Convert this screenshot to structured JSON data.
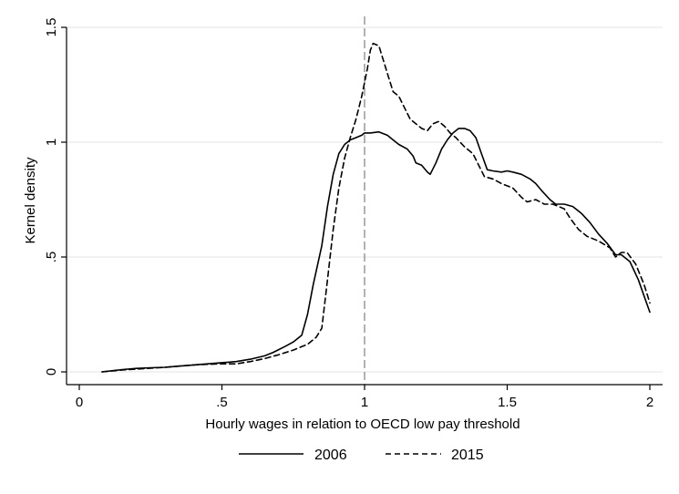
{
  "chart_data": {
    "type": "line",
    "title": "",
    "xlabel": "Hourly wages in relation to OECD low pay threshold",
    "ylabel": "Kernel density",
    "xlim": [
      0,
      2
    ],
    "ylim": [
      0,
      1.5
    ],
    "x_ticks": [
      0,
      0.5,
      1,
      1.5,
      2
    ],
    "x_tick_labels": [
      "0",
      ".5",
      "1",
      "1.5",
      "2"
    ],
    "y_ticks": [
      0,
      0.5,
      1,
      1.5
    ],
    "y_tick_labels": [
      "0",
      ".5",
      "1",
      "1.5"
    ],
    "grid": "horizontal",
    "reference_line": {
      "x": 1,
      "style": "dashed"
    },
    "legend": {
      "position": "bottom",
      "entries": [
        "2006",
        "2015"
      ]
    },
    "series": [
      {
        "name": "2006",
        "style": "solid",
        "color": "#000000",
        "points": [
          [
            0.08,
            0.0
          ],
          [
            0.15,
            0.01
          ],
          [
            0.2,
            0.015
          ],
          [
            0.25,
            0.018
          ],
          [
            0.3,
            0.02
          ],
          [
            0.35,
            0.025
          ],
          [
            0.4,
            0.03
          ],
          [
            0.45,
            0.035
          ],
          [
            0.5,
            0.04
          ],
          [
            0.55,
            0.045
          ],
          [
            0.6,
            0.055
          ],
          [
            0.65,
            0.07
          ],
          [
            0.68,
            0.085
          ],
          [
            0.72,
            0.11
          ],
          [
            0.75,
            0.13
          ],
          [
            0.77,
            0.15
          ],
          [
            0.78,
            0.16
          ],
          [
            0.8,
            0.25
          ],
          [
            0.82,
            0.38
          ],
          [
            0.85,
            0.55
          ],
          [
            0.87,
            0.72
          ],
          [
            0.89,
            0.86
          ],
          [
            0.91,
            0.95
          ],
          [
            0.93,
            0.99
          ],
          [
            0.95,
            1.01
          ],
          [
            0.97,
            1.02
          ],
          [
            0.99,
            1.03
          ],
          [
            1.0,
            1.04
          ],
          [
            1.02,
            1.04
          ],
          [
            1.05,
            1.045
          ],
          [
            1.08,
            1.03
          ],
          [
            1.1,
            1.01
          ],
          [
            1.12,
            0.99
          ],
          [
            1.15,
            0.97
          ],
          [
            1.17,
            0.94
          ],
          [
            1.18,
            0.91
          ],
          [
            1.2,
            0.9
          ],
          [
            1.22,
            0.87
          ],
          [
            1.23,
            0.86
          ],
          [
            1.25,
            0.91
          ],
          [
            1.27,
            0.97
          ],
          [
            1.29,
            1.01
          ],
          [
            1.31,
            1.04
          ],
          [
            1.33,
            1.06
          ],
          [
            1.35,
            1.06
          ],
          [
            1.37,
            1.05
          ],
          [
            1.39,
            1.02
          ],
          [
            1.41,
            0.95
          ],
          [
            1.43,
            0.88
          ],
          [
            1.45,
            0.875
          ],
          [
            1.48,
            0.87
          ],
          [
            1.5,
            0.875
          ],
          [
            1.52,
            0.87
          ],
          [
            1.55,
            0.86
          ],
          [
            1.58,
            0.84
          ],
          [
            1.6,
            0.82
          ],
          [
            1.62,
            0.79
          ],
          [
            1.65,
            0.75
          ],
          [
            1.67,
            0.73
          ],
          [
            1.7,
            0.73
          ],
          [
            1.73,
            0.72
          ],
          [
            1.76,
            0.69
          ],
          [
            1.79,
            0.65
          ],
          [
            1.82,
            0.6
          ],
          [
            1.85,
            0.56
          ],
          [
            1.88,
            0.51
          ],
          [
            1.9,
            0.51
          ],
          [
            1.93,
            0.48
          ],
          [
            1.96,
            0.4
          ],
          [
            1.98,
            0.33
          ],
          [
            2.0,
            0.26
          ]
        ]
      },
      {
        "name": "2015",
        "style": "dashed",
        "color": "#000000",
        "points": [
          [
            0.08,
            0.0
          ],
          [
            0.15,
            0.008
          ],
          [
            0.2,
            0.012
          ],
          [
            0.25,
            0.016
          ],
          [
            0.3,
            0.02
          ],
          [
            0.35,
            0.025
          ],
          [
            0.4,
            0.03
          ],
          [
            0.45,
            0.033
          ],
          [
            0.5,
            0.035
          ],
          [
            0.55,
            0.035
          ],
          [
            0.6,
            0.045
          ],
          [
            0.65,
            0.058
          ],
          [
            0.7,
            0.075
          ],
          [
            0.75,
            0.095
          ],
          [
            0.78,
            0.11
          ],
          [
            0.8,
            0.12
          ],
          [
            0.83,
            0.15
          ],
          [
            0.85,
            0.19
          ],
          [
            0.87,
            0.4
          ],
          [
            0.89,
            0.62
          ],
          [
            0.91,
            0.8
          ],
          [
            0.93,
            0.93
          ],
          [
            0.95,
            1.02
          ],
          [
            0.97,
            1.1
          ],
          [
            0.99,
            1.2
          ],
          [
            1.01,
            1.32
          ],
          [
            1.02,
            1.4
          ],
          [
            1.03,
            1.43
          ],
          [
            1.05,
            1.42
          ],
          [
            1.06,
            1.38
          ],
          [
            1.08,
            1.3
          ],
          [
            1.1,
            1.22
          ],
          [
            1.12,
            1.2
          ],
          [
            1.14,
            1.15
          ],
          [
            1.16,
            1.1
          ],
          [
            1.18,
            1.08
          ],
          [
            1.2,
            1.06
          ],
          [
            1.22,
            1.05
          ],
          [
            1.24,
            1.08
          ],
          [
            1.26,
            1.09
          ],
          [
            1.28,
            1.07
          ],
          [
            1.3,
            1.04
          ],
          [
            1.32,
            1.02
          ],
          [
            1.35,
            0.98
          ],
          [
            1.38,
            0.95
          ],
          [
            1.4,
            0.9
          ],
          [
            1.42,
            0.85
          ],
          [
            1.45,
            0.84
          ],
          [
            1.48,
            0.82
          ],
          [
            1.5,
            0.81
          ],
          [
            1.52,
            0.8
          ],
          [
            1.55,
            0.76
          ],
          [
            1.57,
            0.74
          ],
          [
            1.6,
            0.75
          ],
          [
            1.63,
            0.73
          ],
          [
            1.66,
            0.73
          ],
          [
            1.7,
            0.71
          ],
          [
            1.72,
            0.67
          ],
          [
            1.75,
            0.62
          ],
          [
            1.78,
            0.59
          ],
          [
            1.82,
            0.57
          ],
          [
            1.86,
            0.54
          ],
          [
            1.88,
            0.5
          ],
          [
            1.9,
            0.52
          ],
          [
            1.92,
            0.52
          ],
          [
            1.95,
            0.47
          ],
          [
            1.98,
            0.38
          ],
          [
            2.0,
            0.3
          ]
        ]
      }
    ]
  }
}
